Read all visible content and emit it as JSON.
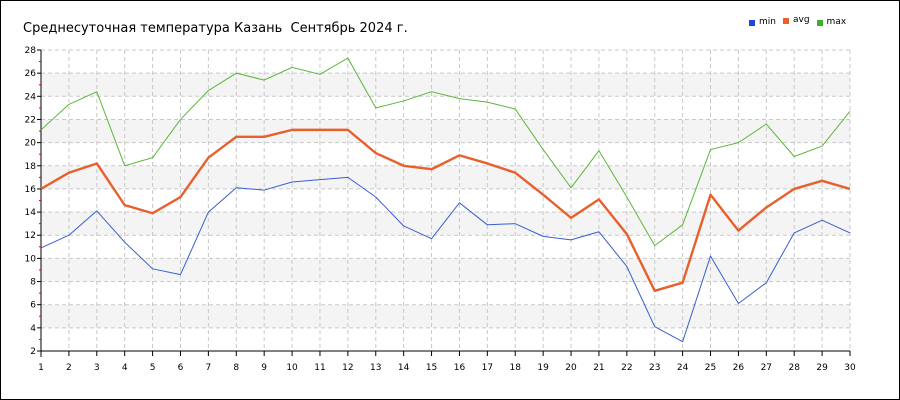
{
  "title": "Среднесуточная температура Казань  Сентябрь 2024 г.",
  "chart_data": {
    "type": "line",
    "title": "Среднесуточная температура Казань  Сентябрь 2024 г.",
    "xlabel": "",
    "ylabel": "",
    "x": [
      1,
      2,
      3,
      4,
      5,
      6,
      7,
      8,
      9,
      10,
      11,
      12,
      13,
      14,
      15,
      16,
      17,
      18,
      19,
      20,
      21,
      22,
      23,
      24,
      25,
      26,
      27,
      28,
      29,
      30
    ],
    "xlim": [
      1,
      30
    ],
    "ylim": [
      2,
      28
    ],
    "yticks": [
      2,
      4,
      6,
      8,
      10,
      12,
      14,
      16,
      18,
      20,
      22,
      24,
      26,
      28
    ],
    "grid": true,
    "legend": "top-right",
    "series": [
      {
        "name": "min",
        "color": "#3a5fcd",
        "width": 1,
        "values": [
          10.9,
          12.0,
          14.1,
          11.4,
          9.1,
          8.6,
          14.0,
          16.1,
          15.9,
          16.6,
          16.8,
          17.0,
          15.3,
          12.8,
          11.7,
          14.8,
          12.9,
          13.0,
          11.9,
          11.6,
          12.3,
          9.3,
          4.1,
          2.8,
          10.2,
          6.1,
          7.9,
          12.2,
          13.3,
          12.2
        ]
      },
      {
        "name": "avg",
        "color": "#e8602c",
        "width": 2.4,
        "values": [
          16.0,
          17.4,
          18.2,
          14.6,
          13.9,
          15.3,
          18.7,
          20.5,
          20.5,
          21.1,
          21.1,
          21.1,
          19.1,
          18.0,
          17.7,
          18.9,
          18.2,
          17.4,
          15.5,
          13.5,
          15.1,
          12.1,
          7.2,
          7.9,
          15.5,
          12.4,
          14.4,
          16.0,
          16.7,
          16.0
        ]
      },
      {
        "name": "max",
        "color": "#5ab73a",
        "width": 1,
        "values": [
          21.1,
          23.3,
          24.4,
          18.0,
          18.7,
          22.0,
          24.5,
          26.0,
          25.4,
          26.5,
          25.9,
          27.3,
          23.0,
          23.6,
          24.4,
          23.8,
          23.5,
          22.9,
          19.4,
          16.1,
          19.3,
          15.3,
          11.1,
          12.9,
          19.4,
          20.0,
          21.6,
          18.8,
          19.7,
          22.7
        ]
      }
    ]
  },
  "legend": [
    {
      "label": "min",
      "color": "#1f45e0"
    },
    {
      "label": "avg",
      "color": "#e8602c"
    },
    {
      "label": "max",
      "color": "#3fae2a"
    }
  ]
}
